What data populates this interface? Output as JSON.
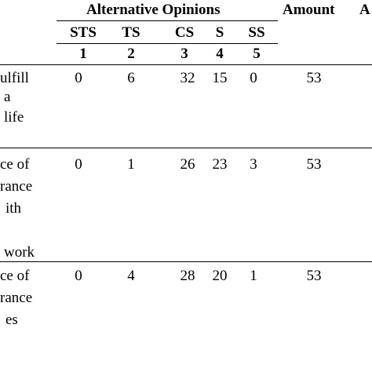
{
  "header": {
    "group_title": "Alternative Opinions",
    "amount": "Amount",
    "next_col_partial": "A",
    "codes": [
      "STS",
      "TS",
      "CS",
      "S",
      "SS"
    ],
    "scale": [
      "1",
      "2",
      "3",
      "4",
      "5"
    ]
  },
  "rows": [
    {
      "label_lines": [
        "ulfill",
        "a",
        "life"
      ],
      "values": [
        "0",
        "6",
        "32",
        "15",
        "0"
      ],
      "amount": "53"
    },
    {
      "label_lines": [
        "ce of",
        "rance",
        "ith",
        "",
        "work"
      ],
      "values": [
        "0",
        "1",
        "26",
        "23",
        "3"
      ],
      "amount": "53"
    },
    {
      "label_lines": [
        "ce of",
        "rance",
        "es"
      ],
      "values": [
        "0",
        "4",
        "28",
        "20",
        "1"
      ],
      "amount": "53"
    }
  ]
}
